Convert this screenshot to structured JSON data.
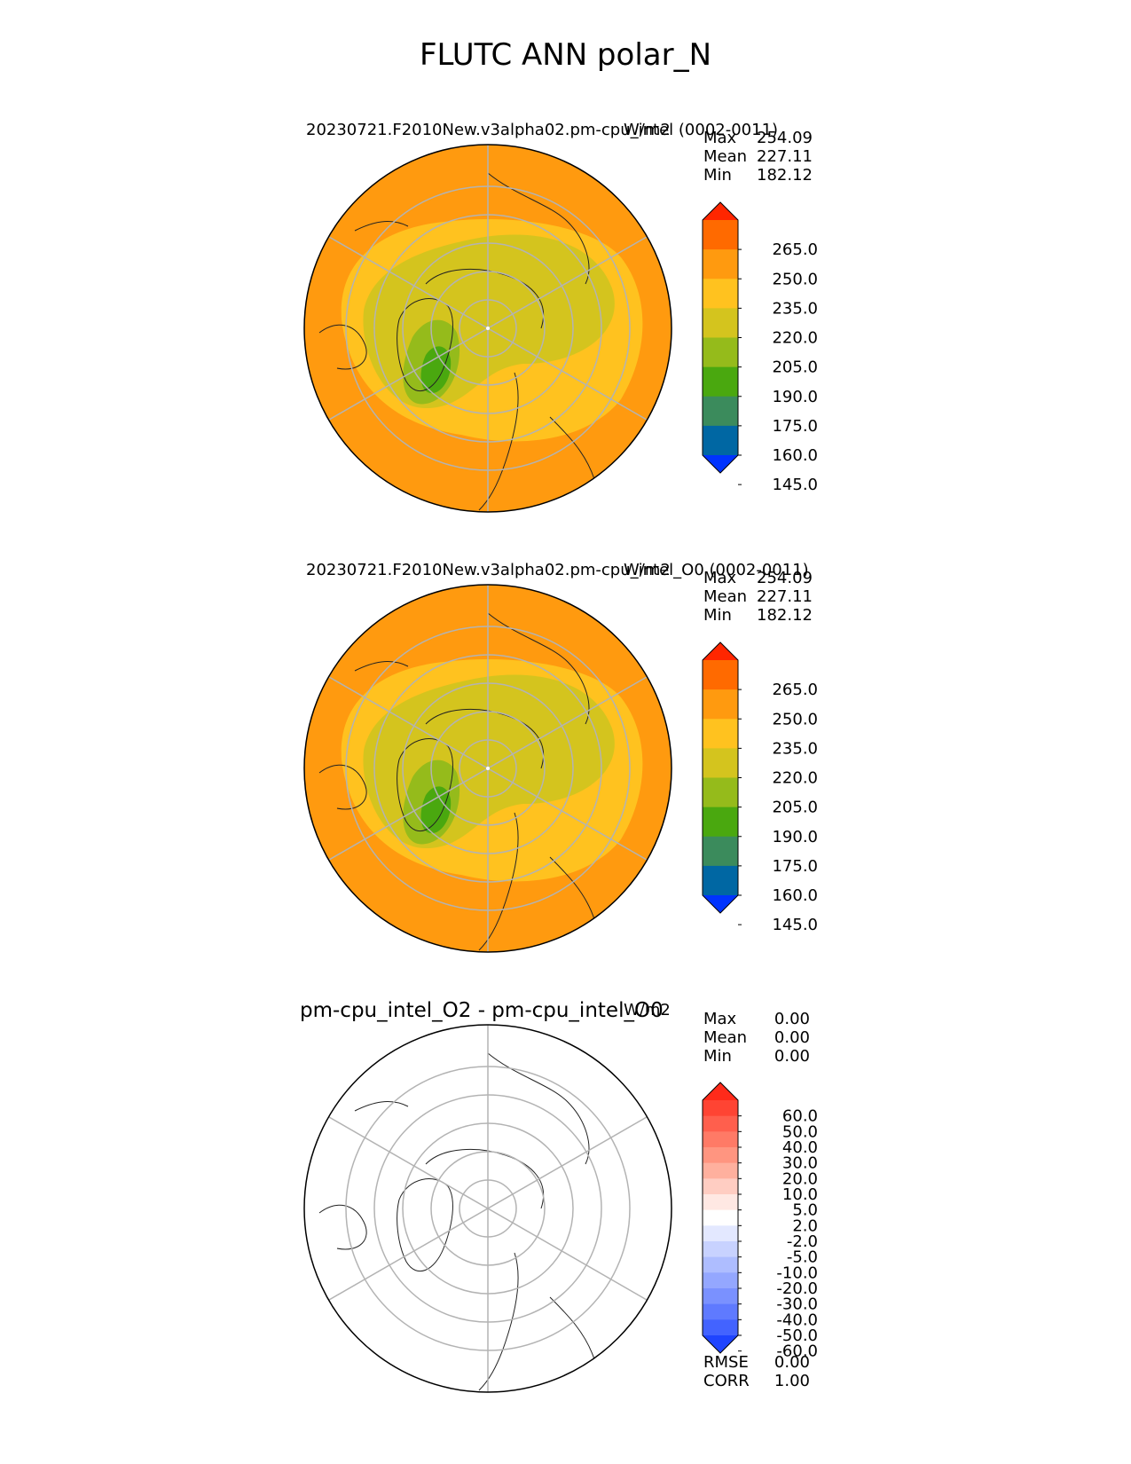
{
  "figure": {
    "title": "FLUTC ANN polar_N"
  },
  "panels": [
    {
      "id": "test",
      "title": "20230721.F2010New.v3alpha02.pm-cpu_intel (0002-0011)",
      "units": "W/m2",
      "stats": [
        {
          "label": "Max",
          "value": "254.09"
        },
        {
          "label": "Mean",
          "value": "227.11"
        },
        {
          "label": "Min",
          "value": "182.12"
        }
      ],
      "colorbar": {
        "ticks": [
          "265.0",
          "250.0",
          "235.0",
          "220.0",
          "205.0",
          "190.0",
          "175.0",
          "160.0",
          "145.0"
        ],
        "colors": [
          "#ff2600",
          "#ff6a00",
          "#ff9a0f",
          "#ffc21f",
          "#d4c41e",
          "#95bb1b",
          "#4aa80f",
          "#3b8b5c",
          "#0067a3",
          "#0033ff"
        ]
      }
    },
    {
      "id": "reference",
      "title": "20230721.F2010New.v3alpha02.pm-cpu_intel_O0 (0002-0011)",
      "units": "W/m2",
      "stats": [
        {
          "label": "Max",
          "value": "254.09"
        },
        {
          "label": "Mean",
          "value": "227.11"
        },
        {
          "label": "Min",
          "value": "182.12"
        }
      ],
      "colorbar": {
        "ticks": [
          "265.0",
          "250.0",
          "235.0",
          "220.0",
          "205.0",
          "190.0",
          "175.0",
          "160.0",
          "145.0"
        ],
        "colors": [
          "#ff2600",
          "#ff6a00",
          "#ff9a0f",
          "#ffc21f",
          "#d4c41e",
          "#95bb1b",
          "#4aa80f",
          "#3b8b5c",
          "#0067a3",
          "#0033ff"
        ]
      }
    },
    {
      "id": "difference",
      "title": "pm-cpu_intel_O2 - pm-cpu_intel_O0",
      "units": "W/m2",
      "stats": [
        {
          "label": "Max",
          "value": "0.00"
        },
        {
          "label": "Mean",
          "value": "0.00"
        },
        {
          "label": "Min",
          "value": "0.00"
        }
      ],
      "metrics": [
        {
          "label": "RMSE",
          "value": "0.00"
        },
        {
          "label": "CORR",
          "value": "1.00"
        }
      ],
      "colorbar": {
        "ticks": [
          "60.0",
          "50.0",
          "40.0",
          "30.0",
          "20.0",
          "10.0",
          "5.0",
          "2.0",
          "-2.0",
          "-5.0",
          "-10.0",
          "-20.0",
          "-30.0",
          "-40.0",
          "-50.0",
          "-60.0"
        ],
        "colors": [
          "#ff2a1a",
          "#ff4433",
          "#ff5f4d",
          "#ff7a66",
          "#ff9580",
          "#ffb09e",
          "#ffcdc2",
          "#ffe8e3",
          "#ffffff",
          "#e3e8ff",
          "#c8d2ff",
          "#aebdff",
          "#94a7ff",
          "#7a91ff",
          "#5f7aff",
          "#4363ff",
          "#1f44ff"
        ]
      }
    }
  ]
}
